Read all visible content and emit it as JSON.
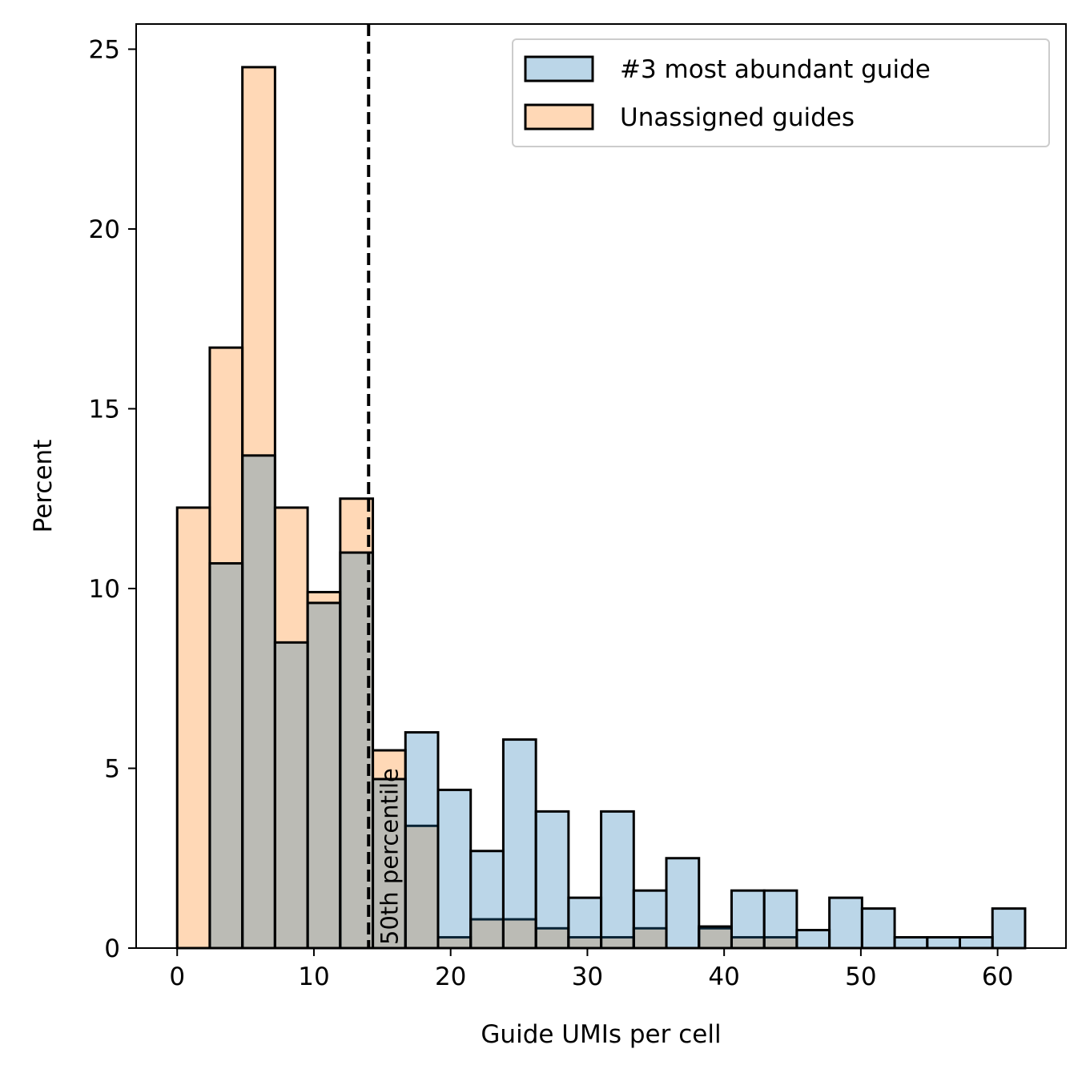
{
  "chart_data": {
    "type": "histogram",
    "xlabel": "Guide UMIs per cell",
    "ylabel": "Percent",
    "xlim": [
      -3,
      65
    ],
    "ylim": [
      0,
      25.7
    ],
    "xticks": [
      0,
      10,
      20,
      30,
      40,
      50,
      60
    ],
    "yticks": [
      0,
      5,
      10,
      15,
      20,
      25
    ],
    "bin_edges": [
      0,
      2.385,
      4.77,
      7.155,
      9.54,
      11.925,
      14.31,
      16.695,
      19.08,
      21.465,
      23.85,
      26.235,
      28.62,
      31.005,
      33.39,
      35.775,
      38.16,
      40.545,
      42.93,
      45.315,
      47.7,
      50.085,
      52.47,
      54.855,
      57.24,
      59.625,
      62.01
    ],
    "legend_position": "upper right",
    "series": [
      {
        "name": "#3 most abundant guide",
        "color": "#1f77b4",
        "values": [
          0,
          10.7,
          13.7,
          8.5,
          9.6,
          11.0,
          4.7,
          6.0,
          4.4,
          2.7,
          5.8,
          3.8,
          1.4,
          3.8,
          1.6,
          2.5,
          0.6,
          1.6,
          1.6,
          0.5,
          1.4,
          1.1,
          0.3,
          0.3,
          0.3,
          1.1
        ]
      },
      {
        "name": "Unassigned guides",
        "color": "#ff7f0e",
        "values": [
          12.25,
          16.7,
          24.5,
          12.25,
          9.9,
          12.5,
          5.5,
          3.4,
          0.3,
          0.8,
          0.8,
          0.55,
          0.3,
          0.3,
          0.55,
          0,
          0.55,
          0.3,
          0.3,
          0,
          0,
          0,
          0,
          0,
          0,
          0
        ]
      }
    ],
    "annotations": [
      {
        "type": "vline",
        "x": 14.0,
        "style": "dashed",
        "color": "#000000",
        "label": "50th percentile"
      }
    ]
  }
}
